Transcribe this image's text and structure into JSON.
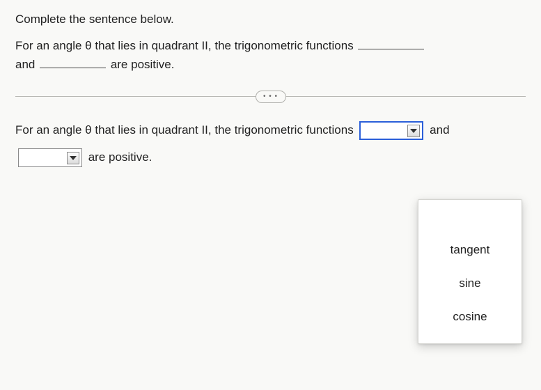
{
  "header": {
    "instruction": "Complete the sentence below."
  },
  "question": {
    "part1": "For an angle θ that lies in quadrant II, the trigonometric functions ",
    "part2": "and ",
    "part3": " are positive."
  },
  "divider_label": "• • •",
  "answer": {
    "part1": "For an angle θ that lies in quadrant II, the trigonometric functions ",
    "and": " and",
    "part3": " are positive."
  },
  "dropdown": {
    "options": {
      "opt1": "tangent",
      "opt2": "sine",
      "opt3": "cosine"
    }
  },
  "colors": {
    "teal": "#1ba89c",
    "active_border": "#2b5fd9",
    "bg": "#f9f9f7",
    "text": "#222222"
  }
}
